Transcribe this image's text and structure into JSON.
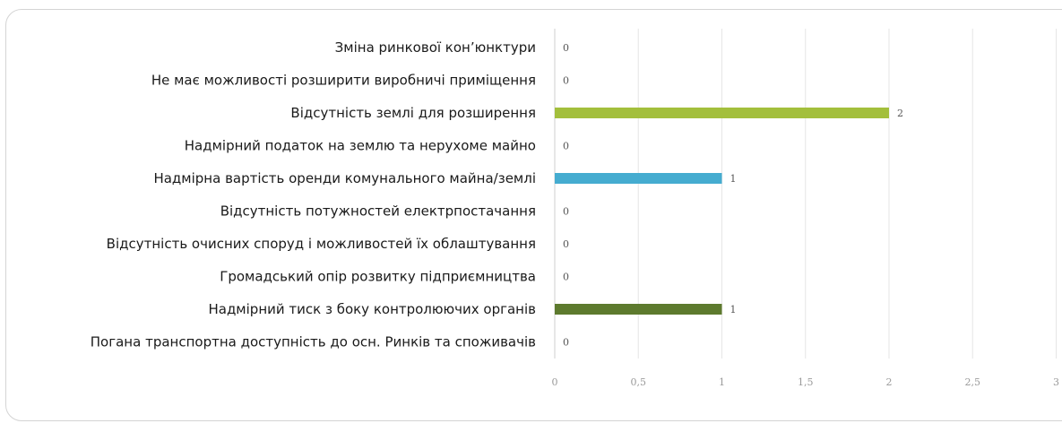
{
  "chart_data": {
    "type": "bar",
    "orientation": "horizontal",
    "categories": [
      "Зміна ринкової кон’юнктури",
      "Не має можливості розширити виробничі приміщення",
      "Відсутність землі для розширення",
      "Надмірний податок на землю та нерухоме майно",
      "Надмірна вартість оренди комунального майна/землі",
      "Відсутність потужностей електрпостачання",
      "Відсутність очисних споруд і можливостей їх облаштування",
      "Громадський опір розвитку підприємництва",
      "Надмірний тиск з боку контролюючих органів",
      "Погана транспортна доступність до осн. Ринків та споживачів"
    ],
    "values": [
      0,
      0,
      2,
      0,
      1,
      0,
      0,
      0,
      1,
      0
    ],
    "data_labels": [
      "0",
      "0",
      "2",
      "0",
      "1",
      "0",
      "0",
      "0",
      "1",
      "0"
    ],
    "bar_colors": [
      "#a3bf3c",
      "#a3bf3c",
      "#a3bf3c",
      "#a3bf3c",
      "#45acd0",
      "#45acd0",
      "#45acd0",
      "#5d7a2e",
      "#5d7a2e",
      "#5d7a2e"
    ],
    "xlim": [
      0,
      3
    ],
    "x_ticks": [
      0,
      0.5,
      1,
      1.5,
      2,
      2.5,
      3
    ],
    "x_tick_labels": [
      "0",
      "0,5",
      "1",
      "1,5",
      "2",
      "2,5",
      "3"
    ],
    "grid": true,
    "legend": "none",
    "title": "",
    "xlabel": "",
    "ylabel": ""
  }
}
